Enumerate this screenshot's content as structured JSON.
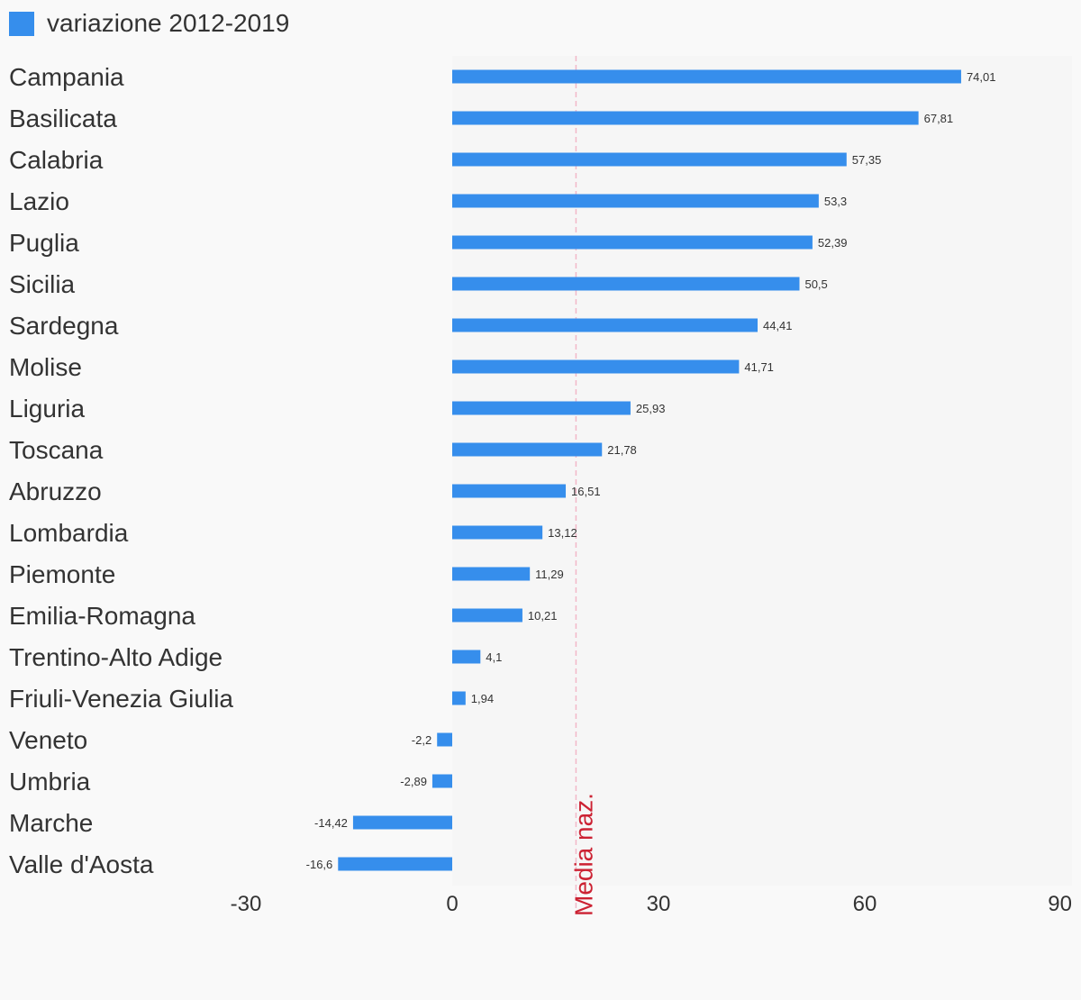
{
  "chart_data": {
    "type": "bar",
    "orientation": "horizontal",
    "series": [
      {
        "name": "variazione 2012-2019",
        "color": "#368eec",
        "values": [
          74.01,
          67.81,
          57.35,
          53.3,
          52.39,
          50.5,
          44.41,
          41.71,
          25.93,
          21.78,
          16.51,
          13.12,
          11.29,
          10.21,
          4.1,
          1.94,
          -2.2,
          -2.89,
          -14.42,
          -16.6
        ]
      }
    ],
    "categories": [
      "Campania",
      "Basilicata",
      "Calabria",
      "Lazio",
      "Puglia",
      "Sicilia",
      "Sardegna",
      "Molise",
      "Liguria",
      "Toscana",
      "Abruzzo",
      "Lombardia",
      "Piemonte",
      "Emilia-Romagna",
      "Trentino-Alto Adige",
      "Friuli-Venezia Giulia",
      "Veneto",
      "Umbria",
      "Marche",
      "Valle d'Aosta"
    ],
    "value_labels": [
      "74,01",
      "67,81",
      "57,35",
      "53,3",
      "52,39",
      "50,5",
      "44,41",
      "41,71",
      "25,93",
      "21,78",
      "16,51",
      "13,12",
      "11,29",
      "10,21",
      "4,1",
      "1,94",
      "-2,2",
      "-2,89",
      "-14,42",
      "-16,6"
    ],
    "x_ticks": [
      -30,
      0,
      30,
      60,
      90
    ],
    "x_tick_labels": [
      "-30",
      "0",
      "30",
      "60",
      "90"
    ],
    "xlim": [
      -30,
      90
    ],
    "reference_line": {
      "label": "Media naz.",
      "value": 18,
      "color": "#cc2233",
      "style": "dashed"
    },
    "legend": "top-left",
    "grid": false
  }
}
